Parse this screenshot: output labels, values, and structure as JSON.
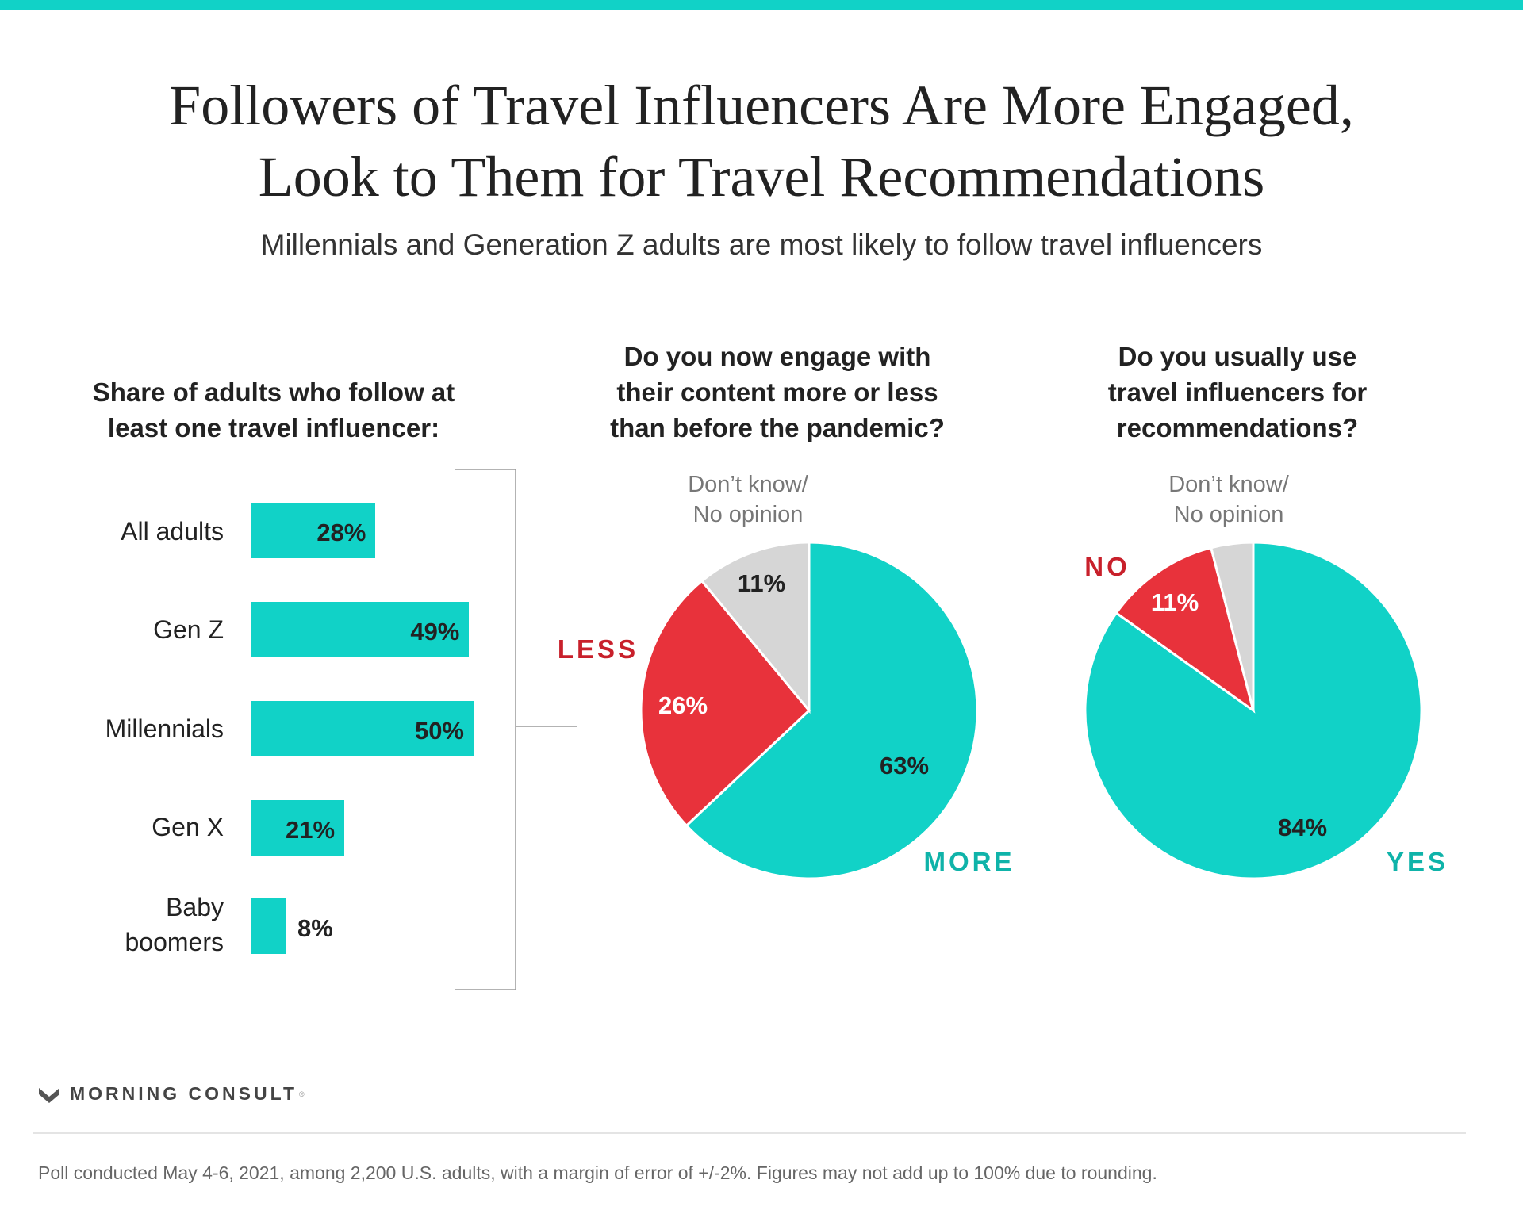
{
  "header": {
    "title_line1": "Followers of Travel Influencers Are More Engaged,",
    "title_line2": "Look to Them for Travel Recommendations",
    "subtitle": "Millennials and Generation Z adults are most likely to follow travel influencers"
  },
  "colors": {
    "accent": "#11d2c7",
    "red": "#e8323b",
    "gray": "#d6d6d6",
    "red_label": "#c8202b",
    "teal_label": "#0fb3a9"
  },
  "chart_data": [
    {
      "type": "bar",
      "orientation": "horizontal",
      "title_line1": "Share of adults who follow at",
      "title_line2": "least one travel influencer:",
      "categories": [
        {
          "line1": "All adults",
          "line2": ""
        },
        {
          "line1": "Gen Z",
          "line2": ""
        },
        {
          "line1": "Millennials",
          "line2": ""
        },
        {
          "line1": "Gen X",
          "line2": ""
        },
        {
          "line1": "Baby",
          "line2": "boomers"
        }
      ],
      "values": [
        28,
        49,
        50,
        21,
        8
      ],
      "value_labels": [
        "28%",
        "49%",
        "50%",
        "21%",
        "8%"
      ],
      "unit": "%"
    },
    {
      "type": "pie",
      "title_line1": "Do you now engage with",
      "title_line2": "their content more or less",
      "title_line3": "than before the pandemic?",
      "slices": [
        {
          "name": "MORE",
          "value": 63,
          "label": "63%",
          "color": "#11d2c7"
        },
        {
          "name": "LESS",
          "value": 26,
          "label": "26%",
          "color": "#e8323b"
        },
        {
          "name": "Don’t know/ No opinion",
          "value": 11,
          "label": "11%",
          "color": "#d6d6d6"
        }
      ],
      "outside_labels": {
        "more": "MORE",
        "less": "LESS",
        "dk_line1": "Don’t know/",
        "dk_line2": "No opinion"
      }
    },
    {
      "type": "pie",
      "title_line1": "Do you usually use",
      "title_line2": "travel influencers for",
      "title_line3": "recommendations?",
      "slices": [
        {
          "name": "YES",
          "value": 84,
          "label": "84%",
          "color": "#11d2c7"
        },
        {
          "name": "NO",
          "value": 11,
          "label": "11%",
          "color": "#e8323b"
        },
        {
          "name": "Don’t know/ No opinion",
          "value": 4,
          "label": "",
          "color": "#d6d6d6"
        }
      ],
      "outside_labels": {
        "yes": "YES",
        "no": "NO",
        "dk_line1": "Don’t know/",
        "dk_line2": "No opinion"
      }
    }
  ],
  "footer": {
    "brand": "MORNING CONSULT",
    "note": "Poll conducted May 4-6, 2021, among 2,200 U.S. adults, with a margin of error of +/-2%. Figures may not add up to 100% due to rounding."
  }
}
